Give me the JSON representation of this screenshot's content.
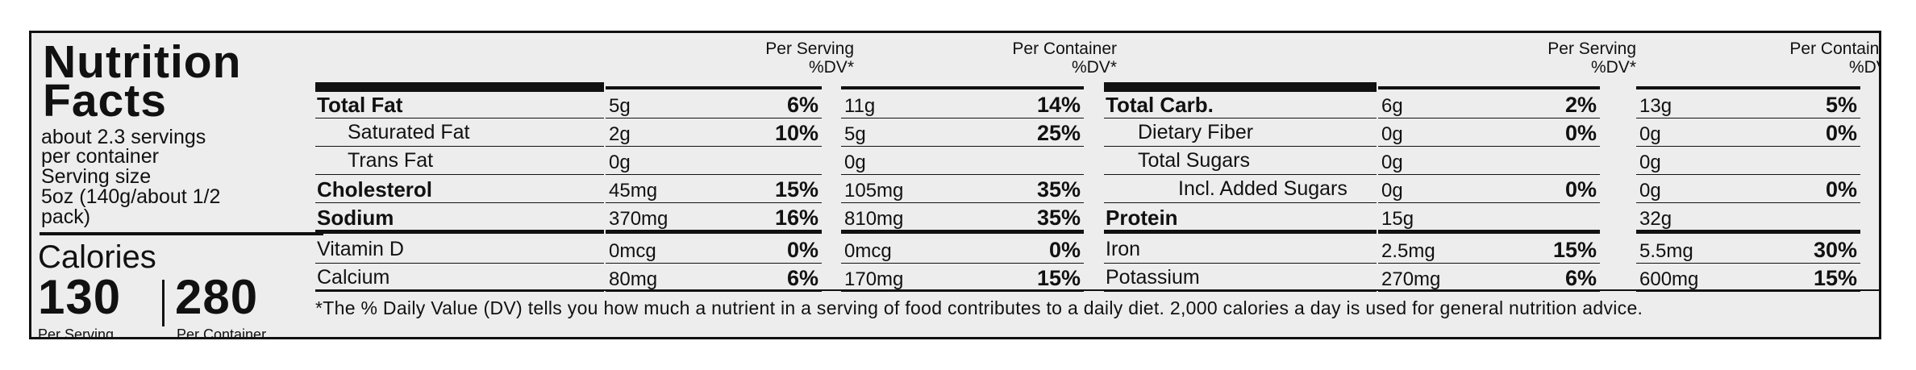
{
  "label": {
    "title_line1": "Nutrition",
    "title_line2": "Facts",
    "servings_line1": "about 2.3 servings",
    "servings_line2": "per container",
    "serving_size_label": "Serving size",
    "serving_size_line1": "5oz (140g/about 1/2",
    "serving_size_line2": "pack)",
    "calories_label": "Calories",
    "calories_per_serving": "130",
    "calories_per_container": "280",
    "per_serving_label": "Per Serving",
    "per_container_label": "Per Container"
  },
  "headers": {
    "per_serving": "Per Serving",
    "per_container": "Per Container",
    "dv": "%DV*"
  },
  "left_rows": [
    {
      "name": "Total Fat",
      "serv_amt": "5g",
      "serv_dv": "6%",
      "cont_amt": "11g",
      "cont_dv": "14%"
    },
    {
      "name": "Saturated Fat",
      "serv_amt": "2g",
      "serv_dv": "10%",
      "cont_amt": "5g",
      "cont_dv": "25%"
    },
    {
      "name": "Trans Fat",
      "serv_amt": "0g",
      "serv_dv": "",
      "cont_amt": "0g",
      "cont_dv": ""
    },
    {
      "name": "Cholesterol",
      "serv_amt": "45mg",
      "serv_dv": "15%",
      "cont_amt": "105mg",
      "cont_dv": "35%"
    },
    {
      "name": "Sodium",
      "serv_amt": "370mg",
      "serv_dv": "16%",
      "cont_amt": "810mg",
      "cont_dv": "35%"
    },
    {
      "name": "Vitamin D",
      "serv_amt": "0mcg",
      "serv_dv": "0%",
      "cont_amt": "0mcg",
      "cont_dv": "0%"
    },
    {
      "name": "Calcium",
      "serv_amt": "80mg",
      "serv_dv": "6%",
      "cont_amt": "170mg",
      "cont_dv": "15%"
    }
  ],
  "right_rows": [
    {
      "name": "Total Carb.",
      "serv_amt": "6g",
      "serv_dv": "2%",
      "cont_amt": "13g",
      "cont_dv": "5%"
    },
    {
      "name": "Dietary Fiber",
      "serv_amt": "0g",
      "serv_dv": "0%",
      "cont_amt": "0g",
      "cont_dv": "0%"
    },
    {
      "name": "Total Sugars",
      "serv_amt": "0g",
      "serv_dv": "",
      "cont_amt": "0g",
      "cont_dv": ""
    },
    {
      "name": "Incl. Added Sugars",
      "serv_amt": "0g",
      "serv_dv": "0%",
      "cont_amt": "0g",
      "cont_dv": "0%"
    },
    {
      "name": "Protein",
      "serv_amt": "15g",
      "serv_dv": "",
      "cont_amt": "32g",
      "cont_dv": ""
    },
    {
      "name": "Iron",
      "serv_amt": "2.5mg",
      "serv_dv": "15%",
      "cont_amt": "5.5mg",
      "cont_dv": "30%"
    },
    {
      "name": "Potassium",
      "serv_amt": "270mg",
      "serv_dv": "6%",
      "cont_amt": "600mg",
      "cont_dv": "15%"
    }
  ],
  "footnote": "*The % Daily Value (DV) tells you how much a nutrient in a serving of food contributes to a daily diet.  2,000 calories a day is used for general nutrition advice."
}
